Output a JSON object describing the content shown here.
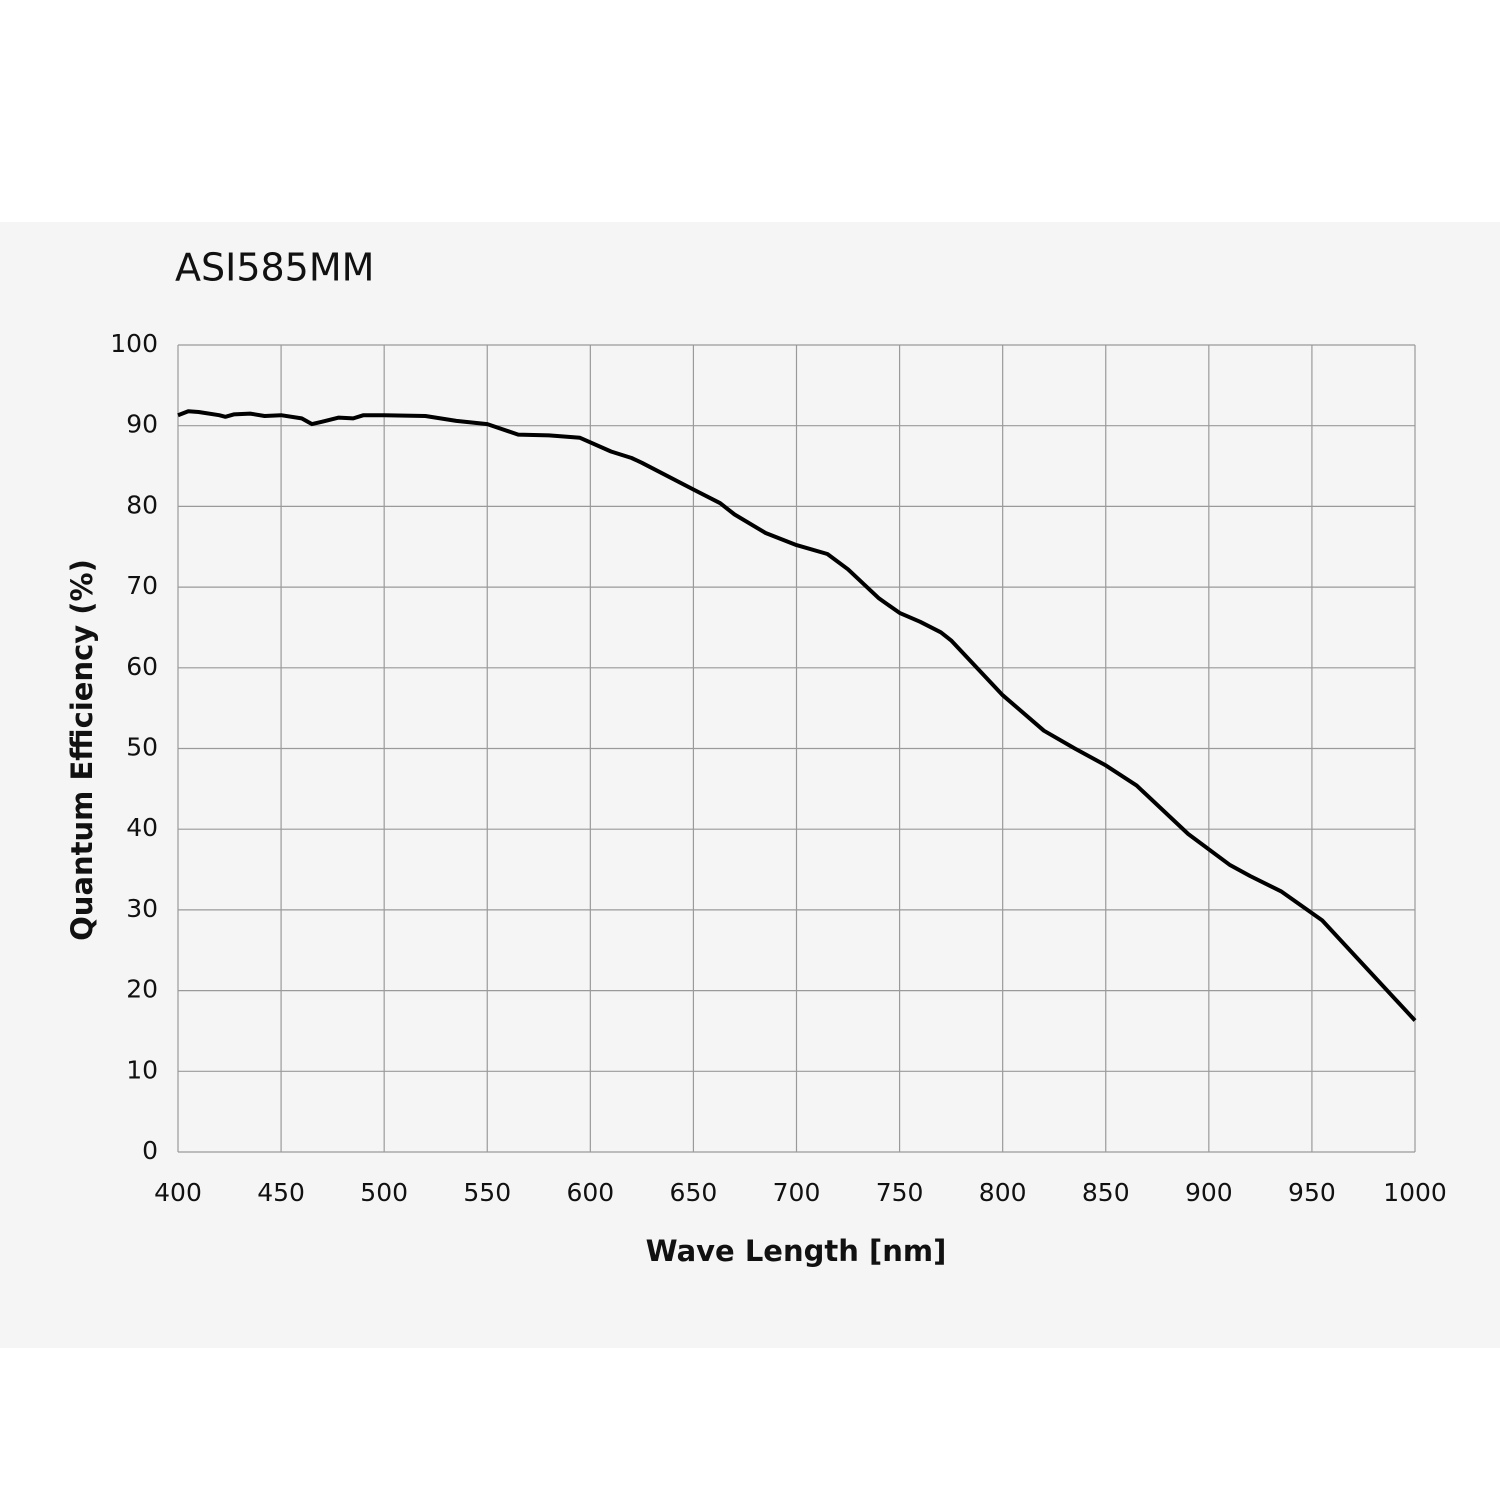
{
  "chart_data": {
    "type": "line",
    "title": "ASI585MM",
    "x_label": "Wave Length [nm]",
    "y_label": "Quantum Efficiency (%)",
    "x": [
      400,
      405,
      410,
      420,
      423,
      427,
      435,
      442,
      450,
      460,
      465,
      470,
      478,
      485,
      490,
      500,
      520,
      535,
      550,
      565,
      580,
      595,
      610,
      620,
      625,
      650,
      663,
      670,
      685,
      700,
      715,
      725,
      740,
      750,
      760,
      770,
      775,
      800,
      820,
      835,
      850,
      865,
      890,
      910,
      920,
      935,
      955,
      1000
    ],
    "values": [
      91.3,
      91.8,
      91.7,
      91.3,
      91.1,
      91.4,
      91.5,
      91.2,
      91.3,
      90.9,
      90.2,
      90.5,
      91.0,
      90.9,
      91.3,
      91.3,
      91.2,
      90.6,
      90.2,
      88.9,
      88.8,
      88.5,
      86.8,
      86.0,
      85.4,
      82.1,
      80.4,
      79.0,
      76.7,
      75.2,
      74.1,
      72.2,
      68.6,
      66.8,
      65.7,
      64.4,
      63.4,
      56.6,
      52.2,
      50.0,
      47.9,
      45.4,
      39.4,
      35.6,
      34.2,
      32.3,
      28.7,
      16.3
    ],
    "color": "#000000",
    "xlim": [
      400,
      1000
    ],
    "xticks": [
      400,
      450,
      500,
      550,
      600,
      650,
      700,
      750,
      800,
      850,
      900,
      950,
      1000
    ],
    "ylim": [
      0,
      100
    ],
    "yticks": [
      0,
      10,
      20,
      30,
      40,
      50,
      60,
      70,
      80,
      90,
      100
    ],
    "grid": true
  }
}
